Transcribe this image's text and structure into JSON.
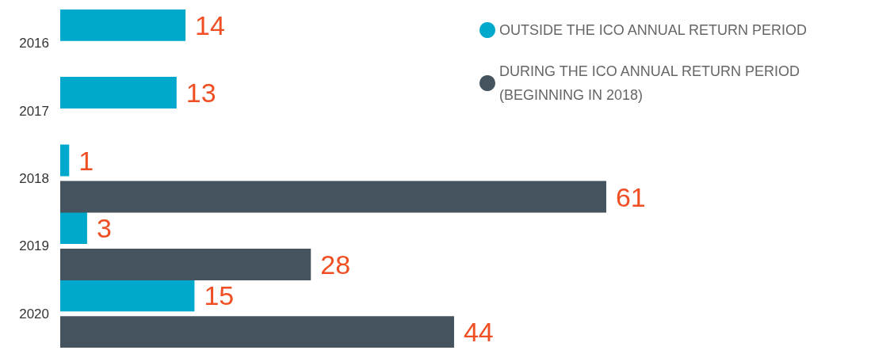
{
  "chart_data": {
    "type": "bar",
    "orientation": "horizontal",
    "categories": [
      "2016",
      "2017",
      "2018",
      "2019",
      "2020"
    ],
    "series": [
      {
        "name": "OUTSIDE THE ICO ANNUAL RETURN PERIOD",
        "color": "#00a8cc",
        "values": [
          14,
          13,
          1,
          3,
          15
        ]
      },
      {
        "name": "DURING THE ICO ANNUAL RETURN PERIOD (BEGINNING IN 2018)",
        "color": "#44535e",
        "values": [
          null,
          null,
          61,
          28,
          44
        ]
      }
    ],
    "data_labels": true,
    "legend": "top right"
  }
}
